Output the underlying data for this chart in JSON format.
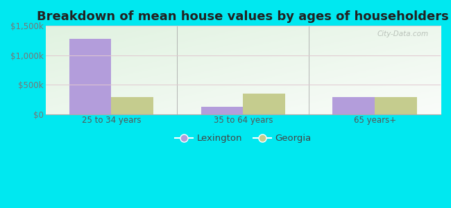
{
  "title": "Breakdown of mean house values by ages of householders",
  "categories": [
    "25 to 34 years",
    "35 to 64 years",
    "65 years+"
  ],
  "lexington_values": [
    1275000,
    125000,
    295000
  ],
  "georgia_values": [
    295000,
    350000,
    290000
  ],
  "lexington_color": "#b39ddb",
  "georgia_color": "#c5cc8e",
  "background_outer": "#00e8f0",
  "background_inner": "#e8f5e4",
  "ylim": [
    0,
    1500000
  ],
  "yticks": [
    0,
    500000,
    1000000,
    1500000
  ],
  "ytick_labels": [
    "$0",
    "$500k",
    "$1,000k",
    "$1,500k"
  ],
  "legend_labels": [
    "Lexington",
    "Georgia"
  ],
  "watermark": "City-Data.com",
  "bar_width": 0.32,
  "title_fontsize": 13,
  "tick_fontsize": 8.5,
  "legend_fontsize": 9.5
}
